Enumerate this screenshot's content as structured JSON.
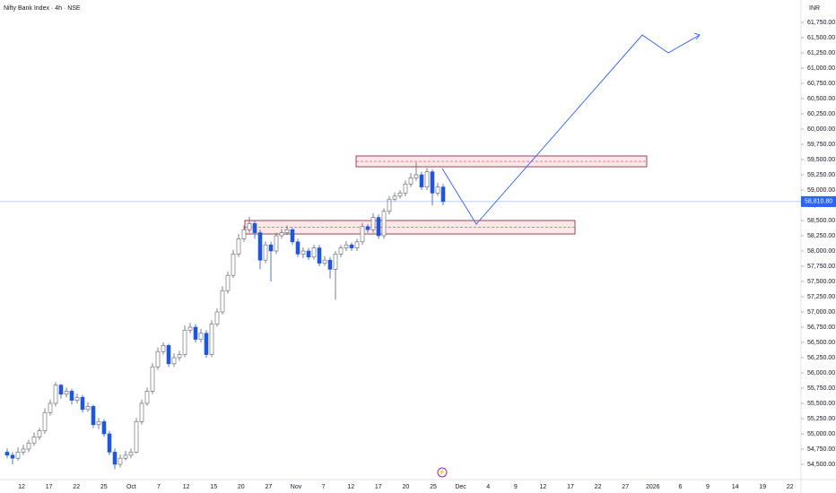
{
  "chart_data": {
    "type": "candlestick",
    "title": "Nifty Bank Index · 4h · NSE",
    "currency": "INR",
    "ylim": [
      54250,
      62118
    ],
    "yticks": [
      {
        "value": 54500,
        "label": "54,500.00"
      },
      {
        "value": 54750,
        "label": "54,750.00"
      },
      {
        "value": 55000,
        "label": "55,000.00"
      },
      {
        "value": 55250,
        "label": "55,250.00"
      },
      {
        "value": 55500,
        "label": "55,500.00"
      },
      {
        "value": 55750,
        "label": "55,750.00"
      },
      {
        "value": 56000,
        "label": "56,000.00"
      },
      {
        "value": 56250,
        "label": "56,250.00"
      },
      {
        "value": 56500,
        "label": "56,500.00"
      },
      {
        "value": 56750,
        "label": "56,750.00"
      },
      {
        "value": 57000,
        "label": "57,000.00"
      },
      {
        "value": 57250,
        "label": "57,250.00"
      },
      {
        "value": 57500,
        "label": "57,500.00"
      },
      {
        "value": 57750,
        "label": "57,750.00"
      },
      {
        "value": 58000,
        "label": "58,000.00"
      },
      {
        "value": 58250,
        "label": "58,250.00"
      },
      {
        "value": 58500,
        "label": "58,500.00"
      },
      {
        "value": 58750,
        "label": "58,750.00"
      },
      {
        "value": 59000,
        "label": "59,000.00"
      },
      {
        "value": 59250,
        "label": "59,250.00"
      },
      {
        "value": 59500,
        "label": "59,500.00"
      },
      {
        "value": 59750,
        "label": "59,750.00"
      },
      {
        "value": 60000,
        "label": "60,000.00"
      },
      {
        "value": 60250,
        "label": "60,250.00"
      },
      {
        "value": 60500,
        "label": "60,500.00"
      },
      {
        "value": 60750,
        "label": "60,750.00"
      },
      {
        "value": 61000,
        "label": "61,000.00"
      },
      {
        "value": 61250,
        "label": "61,250.00"
      },
      {
        "value": 61500,
        "label": "61,500.00"
      },
      {
        "value": 61750,
        "label": "61,750.00"
      }
    ],
    "xticks": [
      "12",
      "17",
      "22",
      "25",
      "Oct",
      "7",
      "12",
      "15",
      "20",
      "27",
      "Nov",
      "7",
      "12",
      "17",
      "20",
      "25",
      "Dec",
      "4",
      "9",
      "12",
      "17",
      "22",
      "27",
      "2026",
      "6",
      "9",
      "14",
      "19",
      "22"
    ],
    "last_price": {
      "value": 58810.8,
      "label": "58,810.80"
    },
    "up_color": "#ffffff",
    "up_border": "#5d606b",
    "down_color": "#2157d6",
    "zones": [
      {
        "top": 59559,
        "bottom": 59382
      },
      {
        "top": 58500,
        "bottom": 58279
      }
    ],
    "projection": [
      59353,
      58441,
      61544,
      61250,
      61544
    ],
    "candles": [
      {
        "o": 54700,
        "h": 54760,
        "l": 54600,
        "c": 54650
      },
      {
        "o": 54650,
        "h": 54700,
        "l": 54500,
        "c": 54600
      },
      {
        "o": 54600,
        "h": 54780,
        "l": 54560,
        "c": 54700
      },
      {
        "o": 54700,
        "h": 54820,
        "l": 54650,
        "c": 54750
      },
      {
        "o": 54750,
        "h": 54900,
        "l": 54700,
        "c": 54850
      },
      {
        "o": 54850,
        "h": 55020,
        "l": 54800,
        "c": 54950
      },
      {
        "o": 54950,
        "h": 55100,
        "l": 54900,
        "c": 55050
      },
      {
        "o": 55050,
        "h": 55420,
        "l": 55000,
        "c": 55350
      },
      {
        "o": 55350,
        "h": 55560,
        "l": 55300,
        "c": 55500
      },
      {
        "o": 55500,
        "h": 55850,
        "l": 55450,
        "c": 55800
      },
      {
        "o": 55800,
        "h": 55820,
        "l": 55580,
        "c": 55650
      },
      {
        "o": 55650,
        "h": 55760,
        "l": 55600,
        "c": 55700
      },
      {
        "o": 55700,
        "h": 55740,
        "l": 55480,
        "c": 55550
      },
      {
        "o": 55550,
        "h": 55660,
        "l": 55500,
        "c": 55600
      },
      {
        "o": 55600,
        "h": 55640,
        "l": 55350,
        "c": 55400
      },
      {
        "o": 55400,
        "h": 55520,
        "l": 55360,
        "c": 55450
      },
      {
        "o": 55450,
        "h": 55480,
        "l": 55100,
        "c": 55150
      },
      {
        "o": 55150,
        "h": 55260,
        "l": 55080,
        "c": 55200
      },
      {
        "o": 55200,
        "h": 55240,
        "l": 54950,
        "c": 55000
      },
      {
        "o": 55000,
        "h": 55050,
        "l": 54650,
        "c": 54700
      },
      {
        "o": 54700,
        "h": 54760,
        "l": 54420,
        "c": 54500
      },
      {
        "o": 54500,
        "h": 54660,
        "l": 54450,
        "c": 54600
      },
      {
        "o": 54600,
        "h": 54720,
        "l": 54560,
        "c": 54650
      },
      {
        "o": 54650,
        "h": 54760,
        "l": 54600,
        "c": 54700
      },
      {
        "o": 54700,
        "h": 55260,
        "l": 54680,
        "c": 55200
      },
      {
        "o": 55200,
        "h": 55560,
        "l": 55150,
        "c": 55500
      },
      {
        "o": 55500,
        "h": 55760,
        "l": 55460,
        "c": 55700
      },
      {
        "o": 55700,
        "h": 56160,
        "l": 55650,
        "c": 56100
      },
      {
        "o": 56100,
        "h": 56420,
        "l": 56050,
        "c": 56350
      },
      {
        "o": 56350,
        "h": 56500,
        "l": 56300,
        "c": 56450
      },
      {
        "o": 56450,
        "h": 56480,
        "l": 56100,
        "c": 56150
      },
      {
        "o": 56150,
        "h": 56320,
        "l": 56100,
        "c": 56250
      },
      {
        "o": 56250,
        "h": 56360,
        "l": 56200,
        "c": 56300
      },
      {
        "o": 56300,
        "h": 56780,
        "l": 56260,
        "c": 56700
      },
      {
        "o": 56700,
        "h": 56820,
        "l": 56650,
        "c": 56750
      },
      {
        "o": 56750,
        "h": 56800,
        "l": 56500,
        "c": 56550
      },
      {
        "o": 56550,
        "h": 56720,
        "l": 56500,
        "c": 56650
      },
      {
        "o": 56650,
        "h": 56700,
        "l": 56250,
        "c": 56300
      },
      {
        "o": 56300,
        "h": 56860,
        "l": 56260,
        "c": 56800
      },
      {
        "o": 56800,
        "h": 57060,
        "l": 56760,
        "c": 57000
      },
      {
        "o": 57000,
        "h": 57420,
        "l": 56960,
        "c": 57350
      },
      {
        "o": 57350,
        "h": 57660,
        "l": 57300,
        "c": 57600
      },
      {
        "o": 57600,
        "h": 58020,
        "l": 57560,
        "c": 57950
      },
      {
        "o": 57950,
        "h": 58280,
        "l": 57900,
        "c": 58200
      },
      {
        "o": 58200,
        "h": 58420,
        "l": 58150,
        "c": 58350
      },
      {
        "o": 58350,
        "h": 58560,
        "l": 58300,
        "c": 58450
      },
      {
        "o": 58450,
        "h": 58500,
        "l": 58200,
        "c": 58300
      },
      {
        "o": 58300,
        "h": 58350,
        "l": 57700,
        "c": 57850
      },
      {
        "o": 57850,
        "h": 58160,
        "l": 57800,
        "c": 58100
      },
      {
        "o": 58100,
        "h": 58150,
        "l": 57500,
        "c": 58000
      },
      {
        "o": 58000,
        "h": 58300,
        "l": 57950,
        "c": 58250
      },
      {
        "o": 58250,
        "h": 58360,
        "l": 58200,
        "c": 58300
      },
      {
        "o": 58300,
        "h": 58420,
        "l": 58260,
        "c": 58350
      },
      {
        "o": 58350,
        "h": 58380,
        "l": 58100,
        "c": 58150
      },
      {
        "o": 58150,
        "h": 58200,
        "l": 57900,
        "c": 57950
      },
      {
        "o": 57950,
        "h": 58060,
        "l": 57880,
        "c": 58000
      },
      {
        "o": 58000,
        "h": 58050,
        "l": 57850,
        "c": 57900
      },
      {
        "o": 57900,
        "h": 58100,
        "l": 57860,
        "c": 58050
      },
      {
        "o": 58050,
        "h": 58100,
        "l": 57750,
        "c": 57800
      },
      {
        "o": 57800,
        "h": 57920,
        "l": 57760,
        "c": 57850
      },
      {
        "o": 57850,
        "h": 57900,
        "l": 57550,
        "c": 57700
      },
      {
        "o": 57700,
        "h": 58000,
        "l": 57200,
        "c": 57950
      },
      {
        "o": 57950,
        "h": 58100,
        "l": 57900,
        "c": 58050
      },
      {
        "o": 58050,
        "h": 58160,
        "l": 58000,
        "c": 58100
      },
      {
        "o": 58100,
        "h": 58140,
        "l": 58000,
        "c": 58050
      },
      {
        "o": 58050,
        "h": 58200,
        "l": 58000,
        "c": 58150
      },
      {
        "o": 58150,
        "h": 58460,
        "l": 58100,
        "c": 58400
      },
      {
        "o": 58400,
        "h": 58440,
        "l": 58300,
        "c": 58350
      },
      {
        "o": 58350,
        "h": 58620,
        "l": 58300,
        "c": 58550
      },
      {
        "o": 58550,
        "h": 58600,
        "l": 58200,
        "c": 58250
      },
      {
        "o": 58250,
        "h": 58700,
        "l": 58200,
        "c": 58650
      },
      {
        "o": 58650,
        "h": 58900,
        "l": 58600,
        "c": 58850
      },
      {
        "o": 58850,
        "h": 58960,
        "l": 58820,
        "c": 58900
      },
      {
        "o": 58900,
        "h": 59000,
        "l": 58860,
        "c": 58950
      },
      {
        "o": 58950,
        "h": 59160,
        "l": 58900,
        "c": 59100
      },
      {
        "o": 59100,
        "h": 59280,
        "l": 59050,
        "c": 59200
      },
      {
        "o": 59200,
        "h": 59450,
        "l": 59150,
        "c": 59250
      },
      {
        "o": 59250,
        "h": 59300,
        "l": 59000,
        "c": 59050
      },
      {
        "o": 59050,
        "h": 59360,
        "l": 59000,
        "c": 59300
      },
      {
        "o": 59300,
        "h": 59340,
        "l": 58750,
        "c": 58950
      },
      {
        "o": 58950,
        "h": 59120,
        "l": 58900,
        "c": 59050
      },
      {
        "o": 59050,
        "h": 59100,
        "l": 58750,
        "c": 58810.8
      }
    ]
  }
}
